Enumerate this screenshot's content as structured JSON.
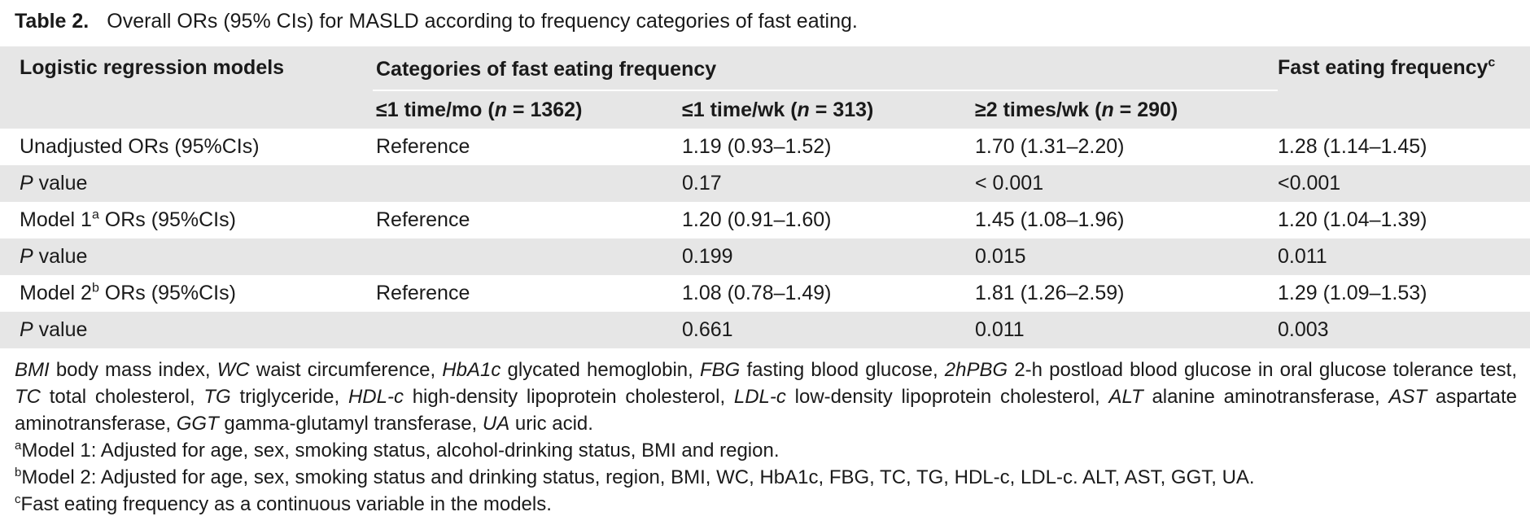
{
  "caption": {
    "label": "Table 2.",
    "text": "Overall ORs (95% CIs) for MASLD according to frequency categories of fast eating."
  },
  "header": {
    "col1": "Logistic regression models",
    "group": "Categories of fast eating frequency",
    "col5": "Fast eating frequency",
    "col5_sup": "c",
    "sub": [
      {
        "pre": "≤1 time/mo (",
        "n": "n",
        "post": " = 1362)"
      },
      {
        "pre": "≤1 time/wk (",
        "n": "n",
        "post": " = 313)"
      },
      {
        "pre": "≥2 times/wk (",
        "n": "n",
        "post": " = 290)"
      }
    ]
  },
  "rows": [
    {
      "label_pre": "Unadjusted ORs (95%CIs)",
      "label_sup": "",
      "label_post": "",
      "italic_p": false,
      "c2": "Reference",
      "c3": "1.19 (0.93–1.52)",
      "c4": "1.70 (1.31–2.20)",
      "c5": "1.28 (1.14–1.45)"
    },
    {
      "label_pre": "P",
      "label_sup": "",
      "label_post": " value",
      "italic_p": true,
      "c2": "",
      "c3": "0.17",
      "c4": "< 0.001",
      "c5": "<0.001"
    },
    {
      "label_pre": "Model 1",
      "label_sup": "a",
      "label_post": " ORs (95%CIs)",
      "italic_p": false,
      "c2": "Reference",
      "c3": "1.20 (0.91–1.60)",
      "c4": "1.45 (1.08–1.96)",
      "c5": "1.20 (1.04–1.39)"
    },
    {
      "label_pre": "P",
      "label_sup": "",
      "label_post": " value",
      "italic_p": true,
      "c2": "",
      "c3": "0.199",
      "c4": "0.015",
      "c5": "0.011"
    },
    {
      "label_pre": "Model 2",
      "label_sup": "b",
      "label_post": " ORs (95%CIs)",
      "italic_p": false,
      "c2": "Reference",
      "c3": "1.08 (0.78–1.49)",
      "c4": "1.81 (1.26–2.59)",
      "c5": "1.29 (1.09–1.53)"
    },
    {
      "label_pre": "P",
      "label_sup": "",
      "label_post": " value",
      "italic_p": true,
      "c2": "",
      "c3": "0.661",
      "c4": "0.011",
      "c5": "0.003"
    }
  ],
  "notes": {
    "abbreviations": [
      {
        "abbr": "BMI",
        "def": " body mass index, "
      },
      {
        "abbr": "WC",
        "def": " waist circumference, "
      },
      {
        "abbr": "HbA1c",
        "def": " glycated hemoglobin, "
      },
      {
        "abbr": "FBG",
        "def": " fasting blood glucose, "
      },
      {
        "abbr": "2hPBG",
        "def": " 2-h postload blood glucose in oral glucose tolerance test, "
      },
      {
        "abbr": "TC",
        "def": " total cholesterol, "
      },
      {
        "abbr": "TG",
        "def": " triglyceride, "
      },
      {
        "abbr": "HDL-c",
        "def": " high-density lipoprotein cholesterol, "
      },
      {
        "abbr": "LDL-c",
        "def": " low-density lipoprotein cholesterol, "
      },
      {
        "abbr": "ALT",
        "def": " alanine aminotransferase, "
      },
      {
        "abbr": "AST",
        "def": " aspartate aminotransferase, "
      },
      {
        "abbr": "GGT",
        "def": " gamma-glutamyl transferase, "
      },
      {
        "abbr": "UA",
        "def": " uric acid."
      }
    ],
    "footnotes": [
      {
        "sup": "a",
        "text": "Model 1: Adjusted for age, sex, smoking status, alcohol-drinking status, BMI and region."
      },
      {
        "sup": "b",
        "text": "Model 2: Adjusted for age, sex, smoking status and drinking status, region, BMI, WC, HbA1c, FBG, TC, TG, HDL-c, LDL-c. ALT, AST, GGT, UA."
      },
      {
        "sup": "c",
        "text": "Fast eating frequency as a continuous variable in the models."
      }
    ]
  }
}
